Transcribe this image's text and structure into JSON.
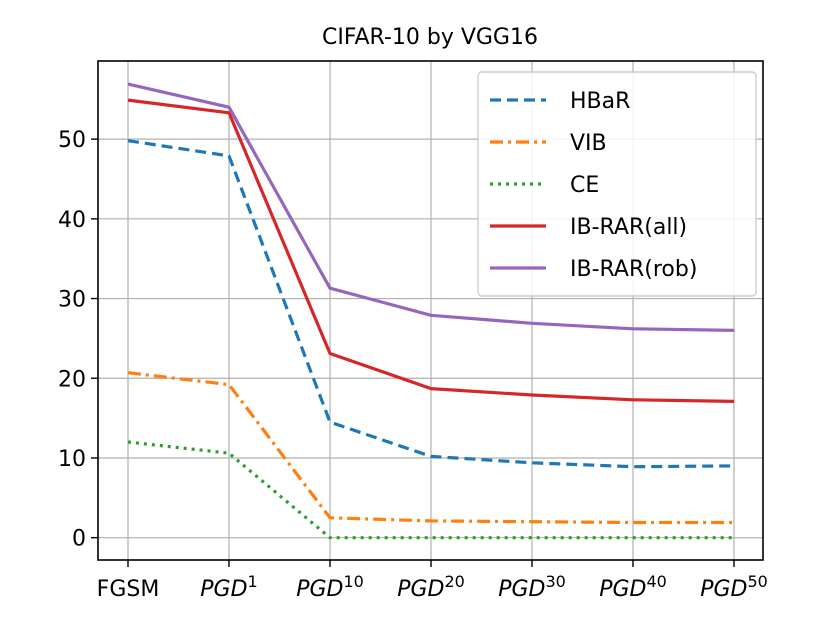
{
  "chart_data": {
    "type": "line",
    "title": "CIFAR-10 by VGG16",
    "xlabel": "",
    "ylabel": "",
    "categories": [
      {
        "label": "FGSM",
        "base": "FGSM",
        "sup": ""
      },
      {
        "label": "PGD1",
        "base": "PGD",
        "sup": "1"
      },
      {
        "label": "PGD10",
        "base": "PGD",
        "sup": "10"
      },
      {
        "label": "PGD20",
        "base": "PGD",
        "sup": "20"
      },
      {
        "label": "PGD30",
        "base": "PGD",
        "sup": "30"
      },
      {
        "label": "PGD40",
        "base": "PGD",
        "sup": "40"
      },
      {
        "label": "PGD50",
        "base": "PGD",
        "sup": "50"
      }
    ],
    "ylim": [
      -2.8,
      59.8
    ],
    "yticks": [
      0,
      10,
      20,
      30,
      40,
      50
    ],
    "grid": true,
    "legend_position": "top-right",
    "series": [
      {
        "name": "HBaR",
        "color": "#1f77b4",
        "dash": "dashed",
        "values": [
          49.8,
          47.9,
          14.5,
          10.2,
          9.4,
          8.9,
          9.0
        ]
      },
      {
        "name": "VIB",
        "color": "#ff7f0e",
        "dash": "dashdot",
        "values": [
          20.7,
          19.2,
          2.5,
          2.1,
          2.0,
          1.9,
          1.9
        ]
      },
      {
        "name": "CE",
        "color": "#2ca02c",
        "dash": "dotted",
        "values": [
          12.0,
          10.6,
          0.0,
          0.0,
          0.0,
          0.0,
          0.0
        ]
      },
      {
        "name": "IB-RAR(all)",
        "color": "#d62728",
        "dash": "solid",
        "values": [
          54.9,
          53.3,
          23.1,
          18.7,
          17.9,
          17.3,
          17.1
        ]
      },
      {
        "name": "IB-RAR(rob)",
        "color": "#9467bd",
        "dash": "solid",
        "values": [
          56.9,
          54.0,
          31.3,
          27.9,
          26.9,
          26.2,
          26.0
        ]
      }
    ]
  }
}
